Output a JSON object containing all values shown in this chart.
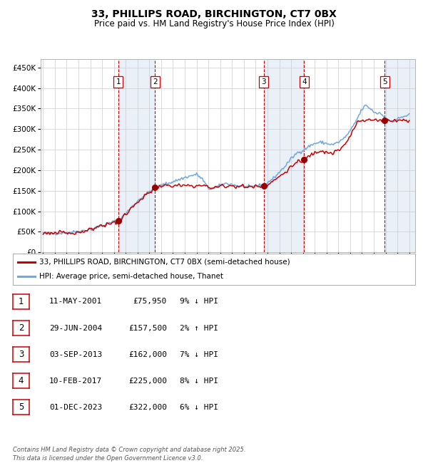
{
  "title": "33, PHILLIPS ROAD, BIRCHINGTON, CT7 0BX",
  "subtitle": "Price paid vs. HM Land Registry's House Price Index (HPI)",
  "legend_line1": "33, PHILLIPS ROAD, BIRCHINGTON, CT7 0BX (semi-detached house)",
  "legend_line2": "HPI: Average price, semi-detached house, Thanet",
  "footer": "Contains HM Land Registry data © Crown copyright and database right 2025.\nThis data is licensed under the Open Government Licence v3.0.",
  "sales": [
    {
      "num": 1,
      "date": "11-MAY-2001",
      "price": 75950,
      "pct": "9%",
      "dir": "↓",
      "year": 2001.36
    },
    {
      "num": 2,
      "date": "29-JUN-2004",
      "price": 157500,
      "pct": "2%",
      "dir": "↑",
      "year": 2004.49
    },
    {
      "num": 3,
      "date": "03-SEP-2013",
      "price": 162000,
      "pct": "7%",
      "dir": "↓",
      "year": 2013.67
    },
    {
      "num": 4,
      "date": "10-FEB-2017",
      "price": 225000,
      "pct": "8%",
      "dir": "↓",
      "year": 2017.11
    },
    {
      "num": 5,
      "date": "01-DEC-2023",
      "price": 322000,
      "pct": "6%",
      "dir": "↓",
      "year": 2023.92
    }
  ],
  "hpi_color": "#6fa8dc",
  "price_color": "#cc0000",
  "sale_marker_color": "#990000",
  "shade_color": "#dce6f4",
  "dashed_color": "#cc0000",
  "grid_color": "#cccccc",
  "bg_color": "#ffffff",
  "ylim": [
    0,
    470000
  ],
  "xlim_start": 1994.8,
  "xlim_end": 2026.5,
  "yticks": [
    0,
    50000,
    100000,
    150000,
    200000,
    250000,
    300000,
    350000,
    400000,
    450000
  ],
  "xticks": [
    1995,
    1996,
    1997,
    1998,
    1999,
    2000,
    2001,
    2002,
    2003,
    2004,
    2005,
    2006,
    2007,
    2008,
    2009,
    2010,
    2011,
    2012,
    2013,
    2014,
    2015,
    2016,
    2017,
    2018,
    2019,
    2020,
    2021,
    2022,
    2023,
    2024,
    2025,
    2026
  ],
  "num_label_yval": 415000,
  "hpi_anchors": [
    [
      1995.0,
      47000
    ],
    [
      1996.0,
      46000
    ],
    [
      1997.0,
      48000
    ],
    [
      1998.0,
      51000
    ],
    [
      1999.0,
      56000
    ],
    [
      2000.0,
      65000
    ],
    [
      2001.0,
      75000
    ],
    [
      2001.4,
      78000
    ],
    [
      2002.0,
      95000
    ],
    [
      2003.0,
      125000
    ],
    [
      2004.0,
      148000
    ],
    [
      2004.5,
      158000
    ],
    [
      2005.0,
      163000
    ],
    [
      2006.0,
      172000
    ],
    [
      2007.0,
      182000
    ],
    [
      2008.0,
      190000
    ],
    [
      2008.5,
      178000
    ],
    [
      2009.0,
      155000
    ],
    [
      2009.5,
      155000
    ],
    [
      2010.0,
      163000
    ],
    [
      2010.5,
      168000
    ],
    [
      2011.0,
      165000
    ],
    [
      2011.5,
      162000
    ],
    [
      2012.0,
      160000
    ],
    [
      2012.5,
      158000
    ],
    [
      2013.0,
      162000
    ],
    [
      2013.7,
      164000
    ],
    [
      2014.0,
      170000
    ],
    [
      2014.5,
      180000
    ],
    [
      2015.0,
      195000
    ],
    [
      2015.5,
      210000
    ],
    [
      2016.0,
      228000
    ],
    [
      2016.5,
      242000
    ],
    [
      2017.0,
      248000
    ],
    [
      2017.5,
      258000
    ],
    [
      2018.0,
      265000
    ],
    [
      2018.5,
      268000
    ],
    [
      2019.0,
      265000
    ],
    [
      2019.5,
      262000
    ],
    [
      2020.0,
      268000
    ],
    [
      2020.5,
      278000
    ],
    [
      2021.0,
      295000
    ],
    [
      2021.5,
      320000
    ],
    [
      2022.0,
      348000
    ],
    [
      2022.3,
      358000
    ],
    [
      2022.7,
      350000
    ],
    [
      2023.0,
      342000
    ],
    [
      2023.3,
      338000
    ],
    [
      2023.5,
      340000
    ],
    [
      2023.9,
      330000
    ],
    [
      2024.0,
      325000
    ],
    [
      2024.3,
      320000
    ],
    [
      2024.7,
      318000
    ],
    [
      2025.0,
      325000
    ],
    [
      2025.5,
      330000
    ],
    [
      2026.0,
      335000
    ]
  ],
  "prop_anchors_years": [
    1995.0,
    2001.36,
    2004.49,
    2013.67,
    2017.11,
    2023.92,
    2026.0
  ],
  "prop_anchors_prices": [
    47000,
    75950,
    157500,
    162000,
    225000,
    322000,
    320000
  ]
}
